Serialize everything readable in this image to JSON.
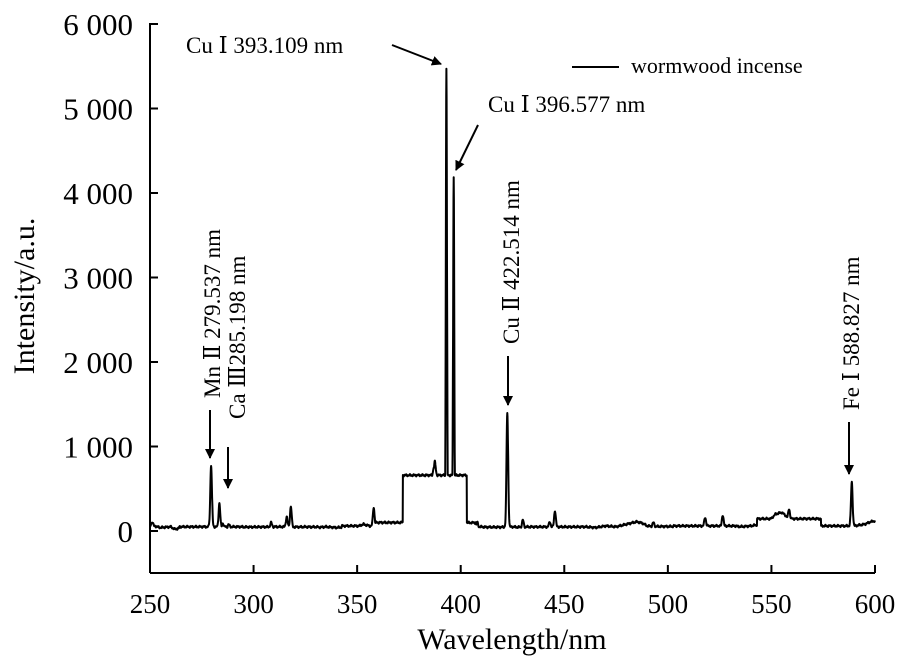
{
  "chart_data": {
    "type": "line",
    "title": "",
    "xlabel": "Wavelength/nm",
    "ylabel": "Intensity/a.u.",
    "xlim": [
      250,
      600
    ],
    "ylim": [
      -500,
      6000
    ],
    "x_ticks": [
      "250",
      "300",
      "350",
      "400",
      "450",
      "500",
      "550",
      "600"
    ],
    "y_ticks": [
      "0",
      "1 000",
      "2 000",
      "3 000",
      "4 000",
      "5 000",
      "6 000"
    ],
    "grid": false,
    "legend": {
      "position": "top-right",
      "entries": [
        "wormwood incense"
      ]
    },
    "series": [
      {
        "name": "wormwood incense",
        "color": "#000000",
        "baseline": [
          [
            250,
            50
          ],
          [
            251,
            110
          ],
          [
            252,
            60
          ],
          [
            255,
            40
          ],
          [
            260,
            50
          ],
          [
            262,
            20
          ],
          [
            265,
            40
          ],
          [
            270,
            30
          ],
          [
            275,
            40
          ],
          [
            277,
            50
          ],
          [
            280,
            50
          ],
          [
            283,
            40
          ],
          [
            287,
            45
          ],
          [
            290,
            30
          ],
          [
            295,
            40
          ],
          [
            300,
            30
          ],
          [
            305,
            40
          ],
          [
            310,
            50
          ],
          [
            315,
            50
          ],
          [
            320,
            40
          ],
          [
            325,
            50
          ],
          [
            330,
            40
          ],
          [
            335,
            50
          ],
          [
            340,
            40
          ],
          [
            345,
            50
          ],
          [
            350,
            50
          ],
          [
            353,
            80
          ],
          [
            356,
            60
          ],
          [
            360,
            60
          ],
          [
            362,
            40
          ],
          [
            365,
            50
          ],
          [
            370,
            60
          ],
          [
            372,
            80
          ],
          [
            375,
            110
          ],
          [
            378,
            200
          ],
          [
            380,
            250
          ],
          [
            382,
            400
          ],
          [
            384,
            560
          ],
          [
            386,
            630
          ],
          [
            387,
            760
          ],
          [
            388,
            560
          ],
          [
            389,
            220
          ],
          [
            390,
            180
          ],
          [
            391,
            110
          ],
          [
            392,
            90
          ],
          [
            393,
            80
          ],
          [
            394,
            200
          ],
          [
            395,
            110
          ],
          [
            396,
            110
          ],
          [
            397,
            90
          ],
          [
            398,
            140
          ],
          [
            400,
            70
          ],
          [
            403,
            50
          ],
          [
            405,
            40
          ],
          [
            410,
            50
          ],
          [
            415,
            40
          ],
          [
            420,
            40
          ],
          [
            425,
            50
          ],
          [
            430,
            40
          ],
          [
            435,
            30
          ],
          [
            440,
            40
          ],
          [
            445,
            50
          ],
          [
            450,
            40
          ],
          [
            455,
            40
          ],
          [
            460,
            50
          ],
          [
            465,
            40
          ],
          [
            470,
            60
          ],
          [
            475,
            50
          ],
          [
            480,
            80
          ],
          [
            485,
            110
          ],
          [
            488,
            90
          ],
          [
            490,
            60
          ],
          [
            495,
            50
          ],
          [
            500,
            40
          ],
          [
            505,
            50
          ],
          [
            510,
            40
          ],
          [
            515,
            60
          ],
          [
            520,
            60
          ],
          [
            525,
            50
          ],
          [
            530,
            60
          ],
          [
            535,
            50
          ],
          [
            540,
            60
          ],
          [
            545,
            80
          ],
          [
            548,
            120
          ],
          [
            550,
            150
          ],
          [
            552,
            200
          ],
          [
            555,
            220
          ],
          [
            557,
            180
          ],
          [
            560,
            110
          ],
          [
            562,
            80
          ],
          [
            565,
            60
          ],
          [
            570,
            50
          ],
          [
            575,
            60
          ],
          [
            580,
            50
          ],
          [
            585,
            60
          ],
          [
            590,
            60
          ],
          [
            595,
            80
          ],
          [
            598,
            110
          ],
          [
            600,
            120
          ]
        ],
        "peaks": [
          [
            251,
            110
          ],
          [
            279.5,
            780
          ],
          [
            283.5,
            330
          ],
          [
            285.2,
            90
          ],
          [
            288,
            80
          ],
          [
            308.5,
            100
          ],
          [
            316,
            170
          ],
          [
            318,
            290
          ],
          [
            358,
            280
          ],
          [
            374,
            180
          ],
          [
            387.5,
            820
          ],
          [
            393.1,
            5480
          ],
          [
            396.6,
            4200
          ],
          [
            408,
            100
          ],
          [
            422.5,
            1400
          ],
          [
            430,
            130
          ],
          [
            443,
            110
          ],
          [
            445.5,
            240
          ],
          [
            493,
            100
          ],
          [
            518,
            160
          ],
          [
            526.5,
            190
          ],
          [
            558.5,
            260
          ],
          [
            588.8,
            580
          ]
        ]
      }
    ],
    "annotations": [
      {
        "text": "Cu  Ⅰ 393.109 nm",
        "x": 393.1,
        "y": 5480
      },
      {
        "text": "Cu  Ⅰ 396.577 nm",
        "x": 396.6,
        "y": 4200
      },
      {
        "text": "Cu  Ⅱ 422.514 nm",
        "x": 422.5,
        "y": 1400
      },
      {
        "text": "Mn  Ⅱ 279.537 nm",
        "x": 279.5,
        "y": 780
      },
      {
        "text": "Ca Ⅲ285.198 nm",
        "x": 285.2,
        "y": 330
      },
      {
        "text": "Fe  Ⅰ 588.827 nm",
        "x": 588.8,
        "y": 580
      }
    ]
  }
}
